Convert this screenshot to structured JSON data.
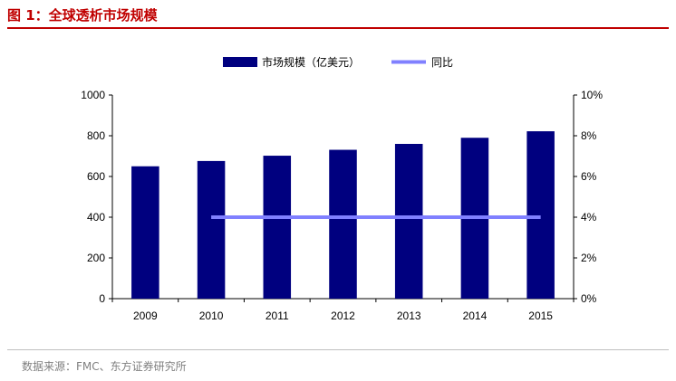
{
  "figure_title": "图 1：全球透析市场规模",
  "source_note": "数据来源：FMC、东方证券研究所",
  "colors": {
    "bar": "#00007f",
    "line": "#8080ff",
    "title": "#c00000"
  },
  "chart_data": {
    "type": "bar",
    "categories": [
      "2009",
      "2010",
      "2011",
      "2012",
      "2013",
      "2014",
      "2015"
    ],
    "series": [
      {
        "name": "市场规模（亿美元）",
        "type": "bar",
        "axis": "left",
        "values": [
          650,
          676,
          702,
          731,
          760,
          790,
          822
        ]
      },
      {
        "name": "同比",
        "type": "line",
        "axis": "right",
        "values": [
          null,
          4,
          4,
          4,
          4,
          4,
          4
        ]
      }
    ],
    "y_left": {
      "min": 0,
      "max": 1000,
      "ticks": [
        "0",
        "200",
        "400",
        "600",
        "800",
        "1000"
      ]
    },
    "y_right": {
      "min": 0,
      "max": 10,
      "ticks": [
        "0%",
        "2%",
        "4%",
        "6%",
        "8%",
        "10%"
      ]
    },
    "grid": false,
    "legend": "top-center"
  }
}
